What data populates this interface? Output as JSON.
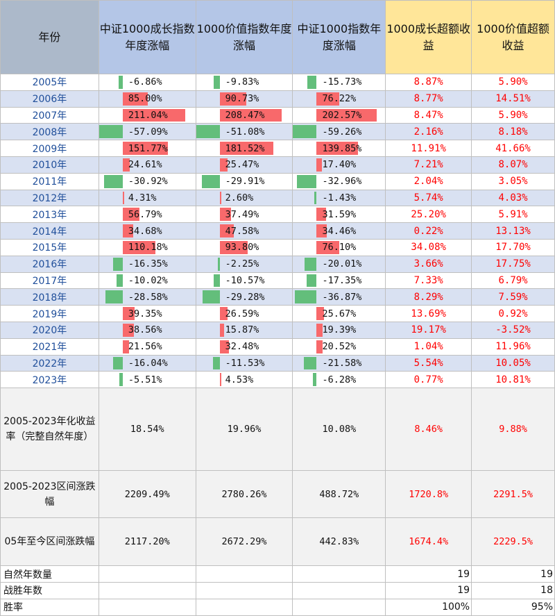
{
  "headers": [
    "年份",
    "中证1000成长指数年度涨幅",
    "1000价值指数年度涨幅",
    "中证1000指数年度涨幅",
    "1000成长超额收益",
    "1000价值超额收益"
  ],
  "colors": {
    "positive_bar": "#f8696b",
    "negative_bar": "#63be7b",
    "excess_text": "#ff0000",
    "header_blue": "#b4c6e7",
    "header_yellow": "#ffe699",
    "stripe": "#d9e1f2"
  },
  "rows": [
    {
      "year": "2005年",
      "growth": "-6.86%",
      "value": "-9.83%",
      "csi": "-15.73%",
      "growth_ex": "8.87%",
      "value_ex": "5.90%",
      "g": -6.86,
      "v": -9.83,
      "c": -15.73
    },
    {
      "year": "2006年",
      "growth": "85.00%",
      "value": "90.73%",
      "csi": "76.22%",
      "growth_ex": "8.77%",
      "value_ex": "14.51%",
      "g": 85.0,
      "v": 90.73,
      "c": 76.22
    },
    {
      "year": "2007年",
      "growth": "211.04%",
      "value": "208.47%",
      "csi": "202.57%",
      "growth_ex": "8.47%",
      "value_ex": "5.90%",
      "g": 211.04,
      "v": 208.47,
      "c": 202.57
    },
    {
      "year": "2008年",
      "growth": "-57.09%",
      "value": "-51.08%",
      "csi": "-59.26%",
      "growth_ex": "2.16%",
      "value_ex": "8.18%",
      "g": -57.09,
      "v": -51.08,
      "c": -59.26
    },
    {
      "year": "2009年",
      "growth": "151.77%",
      "value": "181.52%",
      "csi": "139.85%",
      "growth_ex": "11.91%",
      "value_ex": "41.66%",
      "g": 151.77,
      "v": 181.52,
      "c": 139.85
    },
    {
      "year": "2010年",
      "growth": "24.61%",
      "value": "25.47%",
      "csi": "17.40%",
      "growth_ex": "7.21%",
      "value_ex": "8.07%",
      "g": 24.61,
      "v": 25.47,
      "c": 17.4
    },
    {
      "year": "2011年",
      "growth": "-30.92%",
      "value": "-29.91%",
      "csi": "-32.96%",
      "growth_ex": "2.04%",
      "value_ex": "3.05%",
      "g": -30.92,
      "v": -29.91,
      "c": -32.96
    },
    {
      "year": "2012年",
      "growth": "4.31%",
      "value": "2.60%",
      "csi": "-1.43%",
      "growth_ex": "5.74%",
      "value_ex": "4.03%",
      "g": 4.31,
      "v": 2.6,
      "c": -1.43
    },
    {
      "year": "2013年",
      "growth": "56.79%",
      "value": "37.49%",
      "csi": "31.59%",
      "growth_ex": "25.20%",
      "value_ex": "5.91%",
      "g": 56.79,
      "v": 37.49,
      "c": 31.59
    },
    {
      "year": "2014年",
      "growth": "34.68%",
      "value": "47.58%",
      "csi": "34.46%",
      "growth_ex": "0.22%",
      "value_ex": "13.13%",
      "g": 34.68,
      "v": 47.58,
      "c": 34.46
    },
    {
      "year": "2015年",
      "growth": "110.18%",
      "value": "93.80%",
      "csi": "76.10%",
      "growth_ex": "34.08%",
      "value_ex": "17.70%",
      "g": 110.18,
      "v": 93.8,
      "c": 76.1
    },
    {
      "year": "2016年",
      "growth": "-16.35%",
      "value": "-2.25%",
      "csi": "-20.01%",
      "growth_ex": "3.66%",
      "value_ex": "17.75%",
      "g": -16.35,
      "v": -2.25,
      "c": -20.01
    },
    {
      "year": "2017年",
      "growth": "-10.02%",
      "value": "-10.57%",
      "csi": "-17.35%",
      "growth_ex": "7.33%",
      "value_ex": "6.79%",
      "g": -10.02,
      "v": -10.57,
      "c": -17.35
    },
    {
      "year": "2018年",
      "growth": "-28.58%",
      "value": "-29.28%",
      "csi": "-36.87%",
      "growth_ex": "8.29%",
      "value_ex": "7.59%",
      "g": -28.58,
      "v": -29.28,
      "c": -36.87
    },
    {
      "year": "2019年",
      "growth": "39.35%",
      "value": "26.59%",
      "csi": "25.67%",
      "growth_ex": "13.69%",
      "value_ex": "0.92%",
      "g": 39.35,
      "v": 26.59,
      "c": 25.67
    },
    {
      "year": "2020年",
      "growth": "38.56%",
      "value": "15.87%",
      "csi": "19.39%",
      "growth_ex": "19.17%",
      "value_ex": "-3.52%",
      "g": 38.56,
      "v": 15.87,
      "c": 19.39
    },
    {
      "year": "2021年",
      "growth": "21.56%",
      "value": "32.48%",
      "csi": "20.52%",
      "growth_ex": "1.04%",
      "value_ex": "11.96%",
      "g": 21.56,
      "v": 32.48,
      "c": 20.52
    },
    {
      "year": "2022年",
      "growth": "-16.04%",
      "value": "-11.53%",
      "csi": "-21.58%",
      "growth_ex": "5.54%",
      "value_ex": "10.05%",
      "g": -16.04,
      "v": -11.53,
      "c": -21.58
    },
    {
      "year": "2023年",
      "growth": "-5.51%",
      "value": "4.53%",
      "csi": "-6.28%",
      "growth_ex": "0.77%",
      "value_ex": "10.81%",
      "g": -5.51,
      "v": 4.53,
      "c": -6.28
    }
  ],
  "summary": [
    {
      "label": "2005-2023年化收益率（完整自然年度）",
      "growth": "18.54%",
      "value": "19.96%",
      "csi": "10.08%",
      "growth_ex": "8.46%",
      "value_ex": "9.88%"
    },
    {
      "label": "2005-2023区间涨跌幅",
      "growth": "2209.49%",
      "value": "2780.26%",
      "csi": "488.72%",
      "growth_ex": "1720.8%",
      "value_ex": "2291.5%"
    },
    {
      "label": "05年至今区间涨跌幅",
      "growth": "2117.20%",
      "value": "2672.29%",
      "csi": "442.83%",
      "growth_ex": "1674.4%",
      "value_ex": "2229.5%"
    }
  ],
  "counts": [
    {
      "label": "自然年数量",
      "growth_ex": "19",
      "value_ex": "19"
    },
    {
      "label": "战胜年数",
      "growth_ex": "19",
      "value_ex": "18"
    },
    {
      "label": "胜率",
      "growth_ex": "100%",
      "value_ex": "95%"
    }
  ]
}
